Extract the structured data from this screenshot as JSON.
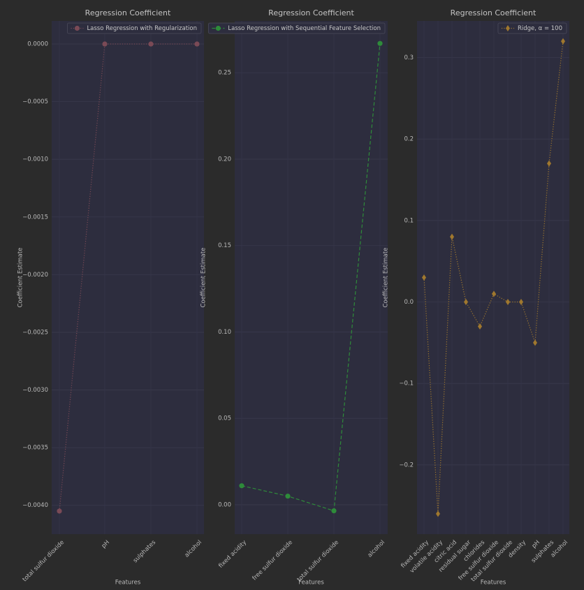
{
  "figure": {
    "background": "#2b2b2b",
    "plot_background": "#2d2d3e"
  },
  "chart_data": [
    {
      "type": "line",
      "title": "Regression Coefficient",
      "xlabel": "Features",
      "ylabel": "Coefficient Estimate",
      "categories": [
        "total sulfur dioxide",
        "pH",
        "sulphates",
        "alcohol"
      ],
      "series": [
        {
          "name": "Lasso Regression with Regularization",
          "values": [
            -0.00405,
            0.0,
            0.0,
            0.0
          ],
          "color": "#7a4a56",
          "linestyle": "dotted",
          "marker": "circle"
        }
      ],
      "ylim": [
        -0.00425,
        0.0002
      ],
      "yticks": [
        0.0,
        -0.0005,
        -0.001,
        -0.0015,
        -0.002,
        -0.0025,
        -0.003,
        -0.0035,
        -0.004
      ],
      "ytick_labels": [
        "0.0000",
        "−0.0005",
        "−0.0010",
        "−0.0015",
        "−0.0020",
        "−0.0025",
        "−0.0030",
        "−0.0035",
        "−0.0040"
      ],
      "grid": true,
      "legend": "top-right"
    },
    {
      "type": "line",
      "title": "Regression Coefficient",
      "xlabel": "Features",
      "ylabel": "Coefficient Estimate",
      "categories": [
        "fixed acidity",
        "free sulfur dioxide",
        "total sulfur dioxide",
        "alcohol"
      ],
      "series": [
        {
          "name": "Lasso Regression with Sequential Feature Selection",
          "values": [
            0.011,
            0.005,
            -0.0035,
            0.267
          ],
          "color": "#2e8b3a",
          "linestyle": "dashed",
          "marker": "circle"
        }
      ],
      "ylim": [
        -0.017,
        0.28
      ],
      "yticks": [
        0.0,
        0.05,
        0.1,
        0.15,
        0.2,
        0.25
      ],
      "ytick_labels": [
        "0.00",
        "0.05",
        "0.10",
        "0.15",
        "0.20",
        "0.25"
      ],
      "grid": true,
      "legend": "top-right"
    },
    {
      "type": "line",
      "title": "Regression Coefficient",
      "xlabel": "Features",
      "ylabel": "Coefficient Estimate",
      "categories": [
        "fixed acidity",
        "volatile acidity",
        "citric acid",
        "residual sugar",
        "chlorides",
        "free sulfur dioxide",
        "total sulfur dioxide",
        "density",
        "pH",
        "sulphates",
        "alcohol"
      ],
      "series": [
        {
          "name": "Ridge, α = 100",
          "values": [
            0.03,
            -0.26,
            0.08,
            0.0,
            -0.03,
            0.01,
            0.0,
            0.0,
            -0.05,
            0.17,
            0.32
          ],
          "color": "#a0782e",
          "linestyle": "dotted",
          "marker": "diamond"
        }
      ],
      "ylim": [
        -0.285,
        0.345
      ],
      "yticks": [
        0.3,
        0.2,
        0.1,
        0.0,
        -0.1,
        -0.2
      ],
      "ytick_labels": [
        "0.3",
        "0.2",
        "0.1",
        "0.0",
        "−0.1",
        "−0.2"
      ],
      "grid": true,
      "legend": "top-right"
    }
  ]
}
